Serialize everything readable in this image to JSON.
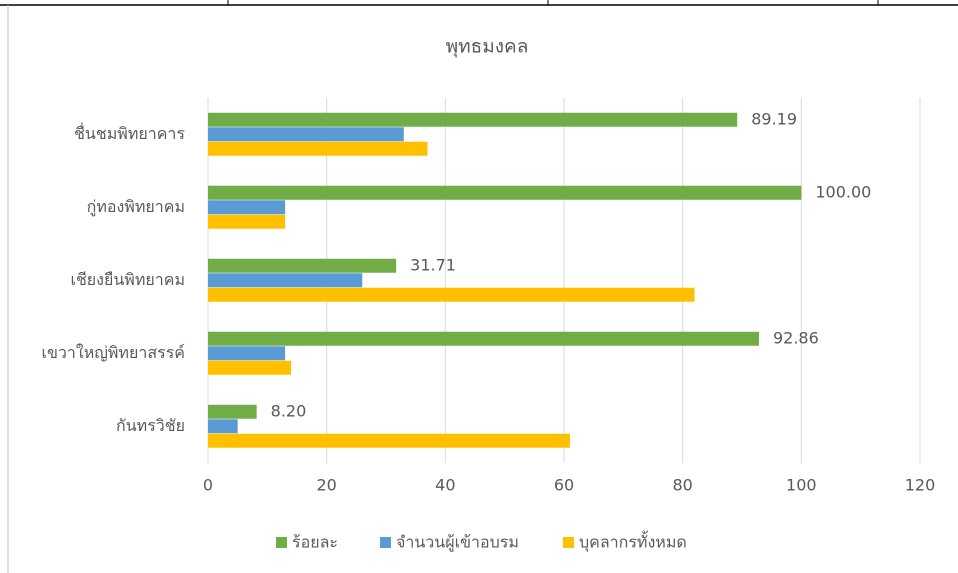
{
  "chart_data": {
    "type": "bar",
    "orientation": "horizontal",
    "title": "พุทธมงคล",
    "categories": [
      "ชื่นชมพิทยาคาร",
      "กู่ทองพิทยาคม",
      "เชียงยืนพิทยาคม",
      "เขวาใหญ่พิทยาสรรค์",
      "กันทรวิชัย"
    ],
    "series": [
      {
        "name": "ร้อยละ",
        "color": "#70ad47",
        "values": [
          89.19,
          100,
          31.71,
          92.86,
          8.2
        ],
        "value_labels": [
          "89.19",
          "100.00",
          "31.71",
          "92.86",
          "8.20"
        ]
      },
      {
        "name": "จำนวนผู้เข้าอบรม",
        "color": "#5b9bd5",
        "values": [
          33,
          13,
          26,
          13,
          5
        ]
      },
      {
        "name": "บุคลากรทั้งหมด",
        "color": "#ffc000",
        "values": [
          37,
          13,
          82,
          14,
          61
        ]
      }
    ],
    "xlim": [
      0,
      120
    ],
    "xticks": [
      0,
      20,
      40,
      60,
      80,
      100,
      120
    ],
    "grid": true,
    "legend": "bottom"
  }
}
